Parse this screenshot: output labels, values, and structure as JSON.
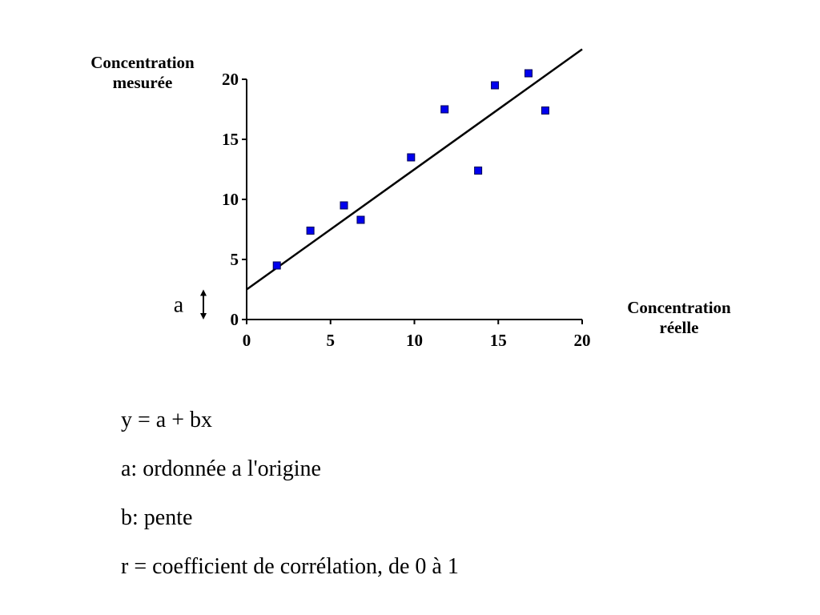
{
  "chart_data": {
    "type": "scatter",
    "xlabel": "Concentration\nréelle",
    "ylabel": "Concentration\nmesurée",
    "xlim": [
      0,
      20
    ],
    "ylim": [
      0,
      20
    ],
    "x_ticks": [
      "0",
      "5",
      "10",
      "15",
      "20"
    ],
    "y_ticks": [
      "0",
      "5",
      "10",
      "15",
      "20"
    ],
    "grid": false,
    "points": [
      {
        "x": 1.8,
        "y": 4.5
      },
      {
        "x": 3.8,
        "y": 7.4
      },
      {
        "x": 5.8,
        "y": 9.5
      },
      {
        "x": 6.8,
        "y": 8.3
      },
      {
        "x": 9.8,
        "y": 13.5
      },
      {
        "x": 11.8,
        "y": 17.5
      },
      {
        "x": 13.8,
        "y": 12.4
      },
      {
        "x": 14.8,
        "y": 19.5
      },
      {
        "x": 16.8,
        "y": 20.5
      },
      {
        "x": 17.8,
        "y": 17.4
      }
    ],
    "regression_line": {
      "x": [
        0,
        20
      ],
      "y": [
        2.5,
        22.5
      ]
    },
    "intercept_label": "a",
    "marker_color": "#0000ee",
    "marker_edge_color": "#000055",
    "line_color": "#000000"
  },
  "notes": [
    "y = a + bx",
    "a: ordonnée a l'origine",
    "b: pente",
    "r = coefficient de corrélation, de 0 à 1"
  ]
}
